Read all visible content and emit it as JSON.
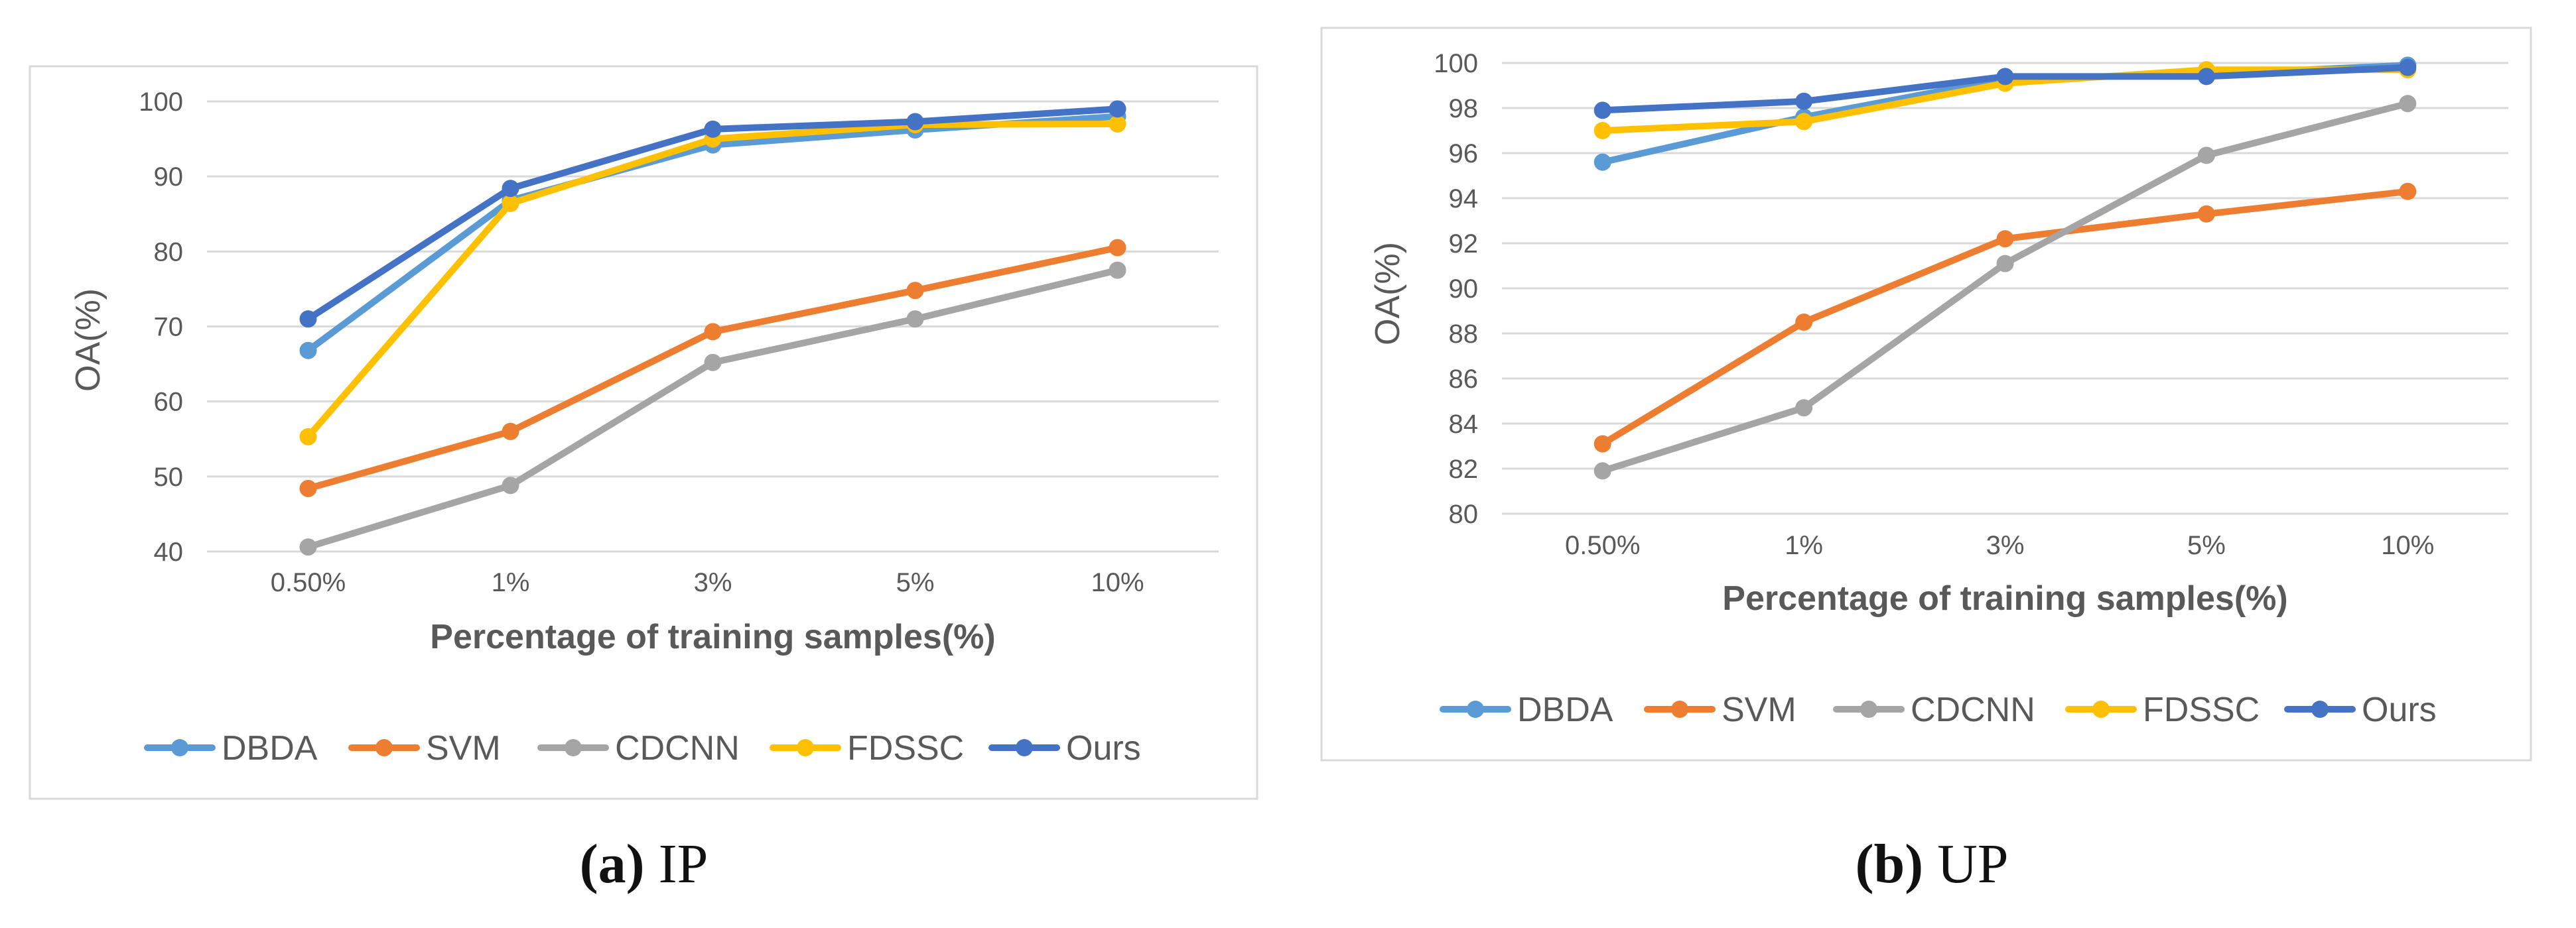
{
  "chart_data": [
    {
      "type": "line",
      "title": "",
      "xlabel": "Percentage of training samples(%)",
      "ylabel": "OA(%)",
      "categories": [
        "0.50%",
        "1%",
        "3%",
        "5%",
        "10%"
      ],
      "ylim": [
        40,
        100
      ],
      "yticks": [
        "40",
        "50",
        "60",
        "70",
        "80",
        "90",
        "100"
      ],
      "grid": true,
      "legend_position": "bottom",
      "series": [
        {
          "name": "DBDA",
          "color": "#5B9BD5",
          "values": [
            66.8,
            86.8,
            94.2,
            96.2,
            98.0
          ]
        },
        {
          "name": "SVM",
          "color": "#ED7D31",
          "values": [
            48.4,
            56.0,
            69.3,
            74.8,
            80.5
          ]
        },
        {
          "name": "CDCNN",
          "color": "#A5A5A5",
          "values": [
            40.6,
            48.8,
            65.2,
            71.0,
            77.5
          ]
        },
        {
          "name": "FDSSC",
          "color": "#FFC000",
          "values": [
            55.3,
            86.4,
            95.0,
            96.9,
            97.0
          ]
        },
        {
          "name": "Ours",
          "color": "#4472C4",
          "values": [
            71.0,
            88.4,
            96.3,
            97.3,
            99.0
          ]
        }
      ],
      "caption": {
        "letter": "(a)",
        "text": " IP"
      }
    },
    {
      "type": "line",
      "title": "",
      "xlabel": "Percentage of training samples(%)",
      "ylabel": "OA(%)",
      "categories": [
        "0.50%",
        "1%",
        "3%",
        "5%",
        "10%"
      ],
      "ylim": [
        80,
        100
      ],
      "yticks": [
        "80",
        "82",
        "84",
        "86",
        "88",
        "90",
        "92",
        "94",
        "96",
        "98",
        "100"
      ],
      "grid": true,
      "legend_position": "bottom",
      "series": [
        {
          "name": "DBDA",
          "color": "#5B9BD5",
          "values": [
            95.6,
            97.6,
            99.3,
            99.5,
            99.9
          ]
        },
        {
          "name": "SVM",
          "color": "#ED7D31",
          "values": [
            83.1,
            88.5,
            92.2,
            93.3,
            94.3
          ]
        },
        {
          "name": "CDCNN",
          "color": "#A5A5A5",
          "values": [
            81.9,
            84.7,
            91.1,
            95.9,
            98.2
          ]
        },
        {
          "name": "FDSSC",
          "color": "#FFC000",
          "values": [
            97.0,
            97.4,
            99.1,
            99.7,
            99.7
          ]
        },
        {
          "name": "Ours",
          "color": "#4472C4",
          "values": [
            97.9,
            98.3,
            99.4,
            99.4,
            99.8
          ]
        }
      ],
      "caption": {
        "letter": "(b)",
        "text": " UP"
      }
    }
  ]
}
